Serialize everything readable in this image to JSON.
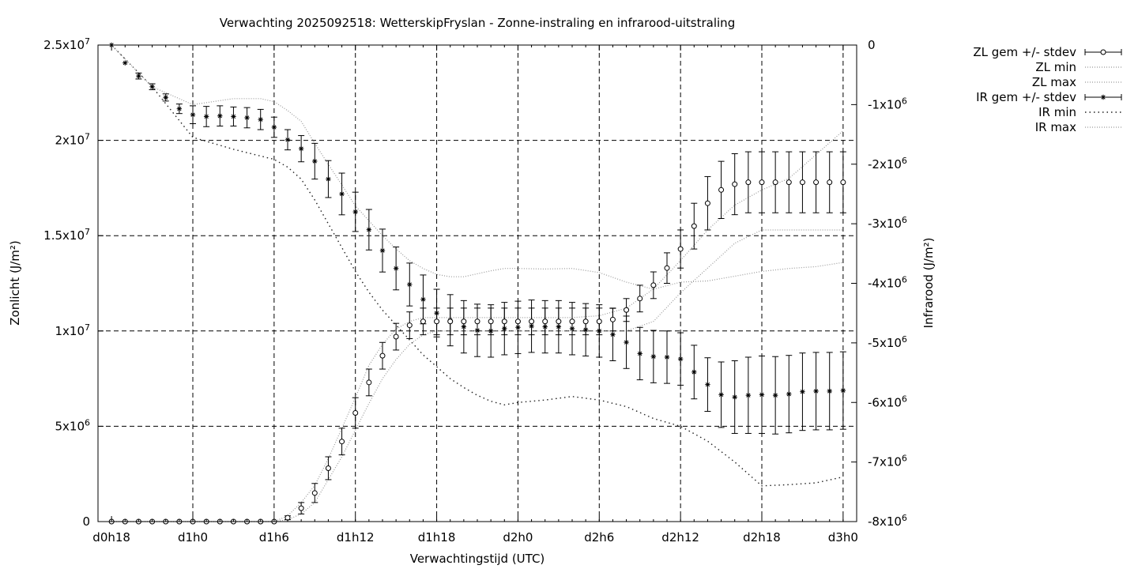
{
  "chart_data": {
    "type": "line",
    "title": "Verwachting 2025092518: WetterskipFryslan - Zonne-instraling en infrarood-uitstraling",
    "xlabel": "Verwachtingstijd (UTC)",
    "ylabel": "Zonlicht (J/m²)",
    "y2label": "Infrarood (J/m²)",
    "x_tick_labels": [
      "d0h18",
      "d1h0",
      "d1h6",
      "d1h12",
      "d1h18",
      "d2h0",
      "d2h6",
      "d2h12",
      "d2h18",
      "d3h0"
    ],
    "x_ticks_hours": [
      18,
      24,
      30,
      36,
      42,
      48,
      54,
      60,
      66,
      72
    ],
    "xlim": [
      17,
      73
    ],
    "ylim": [
      0,
      25000000
    ],
    "y_ticks": [
      {
        "value": 0,
        "base": "0",
        "exp": ""
      },
      {
        "value": 5000000,
        "base": "5x10",
        "exp": "6"
      },
      {
        "value": 10000000,
        "base": "1x10",
        "exp": "7"
      },
      {
        "value": 15000000,
        "base": "1.5x10",
        "exp": "7"
      },
      {
        "value": 20000000,
        "base": "2x10",
        "exp": "7"
      },
      {
        "value": 25000000,
        "base": "2.5x10",
        "exp": "7"
      }
    ],
    "y2lim": [
      -8000000,
      0
    ],
    "y2_ticks": [
      {
        "value": 0,
        "base": "0",
        "exp": ""
      },
      {
        "value": -1000000,
        "base": "-1x10",
        "exp": "6"
      },
      {
        "value": -2000000,
        "base": "-2x10",
        "exp": "6"
      },
      {
        "value": -3000000,
        "base": "-3x10",
        "exp": "6"
      },
      {
        "value": -4000000,
        "base": "-4x10",
        "exp": "6"
      },
      {
        "value": -5000000,
        "base": "-5x10",
        "exp": "6"
      },
      {
        "value": -6000000,
        "base": "-6x10",
        "exp": "6"
      },
      {
        "value": -7000000,
        "base": "-7x10",
        "exp": "6"
      },
      {
        "value": -8000000,
        "base": "-8x10",
        "exp": "6"
      }
    ],
    "grid": true,
    "legend_position": "outside-right",
    "series": [
      {
        "name": "ZL gem +/- stdev",
        "axis": "y1",
        "marker": "circle",
        "style": "errorbars",
        "x": [
          18,
          19,
          20,
          21,
          22,
          23,
          24,
          25,
          26,
          27,
          28,
          29,
          30,
          31,
          32,
          33,
          34,
          35,
          36,
          37,
          38,
          39,
          40,
          41,
          42,
          43,
          44,
          45,
          46,
          47,
          48,
          49,
          50,
          51,
          52,
          53,
          54,
          55,
          56,
          57,
          58,
          59,
          60,
          61,
          62,
          63,
          64,
          65,
          66,
          67,
          68,
          69,
          70,
          71,
          72
        ],
        "values": [
          0,
          0,
          0,
          0,
          0,
          0,
          0,
          0,
          0,
          0,
          0,
          0,
          0,
          200000,
          700000,
          1500000,
          2800000,
          4200000,
          5700000,
          7300000,
          8700000,
          9700000,
          10300000,
          10500000,
          10500000,
          10500000,
          10500000,
          10500000,
          10500000,
          10500000,
          10500000,
          10500000,
          10500000,
          10500000,
          10500000,
          10500000,
          10500000,
          10600000,
          11100000,
          11700000,
          12400000,
          13300000,
          14300000,
          15500000,
          16700000,
          17400000,
          17700000,
          17800000,
          17800000,
          17800000,
          17800000,
          17800000,
          17800000,
          17800000,
          17800000
        ],
        "stdev": [
          0,
          0,
          0,
          0,
          0,
          0,
          0,
          0,
          0,
          0,
          0,
          0,
          0,
          100000,
          300000,
          500000,
          600000,
          700000,
          800000,
          700000,
          700000,
          700000,
          700000,
          700000,
          700000,
          700000,
          700000,
          700000,
          700000,
          700000,
          700000,
          700000,
          700000,
          700000,
          700000,
          700000,
          700000,
          600000,
          600000,
          700000,
          700000,
          800000,
          1000000,
          1200000,
          1400000,
          1500000,
          1600000,
          1600000,
          1600000,
          1600000,
          1600000,
          1600000,
          1600000,
          1600000,
          1600000
        ]
      },
      {
        "name": "ZL min",
        "axis": "y1",
        "style": "dotted",
        "x": [
          18,
          24,
          30,
          31,
          32,
          33,
          34,
          35,
          36,
          37,
          38,
          39,
          40,
          41,
          42,
          43,
          44,
          45,
          46,
          47,
          48,
          50,
          52,
          54,
          56,
          58,
          60,
          62,
          64,
          66,
          68,
          72
        ],
        "values": [
          0,
          0,
          0,
          100000,
          400000,
          1000000,
          2200000,
          3400000,
          4800000,
          6200000,
          7500000,
          8500000,
          9300000,
          9800000,
          10000000,
          10000000,
          10000000,
          10000000,
          10000000,
          10000000,
          10000000,
          10000000,
          10000000,
          10000000,
          10000000,
          10500000,
          12000000,
          13300000,
          14600000,
          15300000,
          15300000,
          15300000
        ]
      },
      {
        "name": "ZL max",
        "axis": "y1",
        "style": "dotted",
        "x": [
          18,
          24,
          30,
          31,
          32,
          33,
          34,
          35,
          36,
          37,
          38,
          39,
          40,
          41,
          42,
          43,
          44,
          45,
          46,
          47,
          48,
          50,
          52,
          54,
          56,
          58,
          60,
          62,
          64,
          66,
          68,
          72
        ],
        "values": [
          0,
          0,
          0,
          300000,
          1000000,
          1900000,
          3300000,
          4900000,
          6500000,
          8200000,
          9300000,
          10100000,
          10500000,
          10700000,
          10700000,
          10700000,
          10700000,
          10700000,
          10700000,
          10700000,
          10700000,
          10700000,
          10700000,
          10800000,
          11200000,
          12200000,
          13700000,
          15300000,
          16600000,
          17400000,
          18000000,
          20500000
        ]
      },
      {
        "name": "IR gem +/- stdev",
        "axis": "y2",
        "marker": "star",
        "style": "errorbars",
        "x": [
          18,
          19,
          20,
          21,
          22,
          23,
          24,
          25,
          26,
          27,
          28,
          29,
          30,
          31,
          32,
          33,
          34,
          35,
          36,
          37,
          38,
          39,
          40,
          41,
          42,
          43,
          44,
          45,
          46,
          47,
          48,
          49,
          50,
          51,
          52,
          53,
          54,
          55,
          56,
          57,
          58,
          59,
          60,
          61,
          62,
          63,
          64,
          65,
          66,
          67,
          68,
          69,
          70,
          71,
          72
        ],
        "values": [
          0,
          -300000,
          -520000,
          -700000,
          -880000,
          -1070000,
          -1170000,
          -1200000,
          -1190000,
          -1200000,
          -1220000,
          -1250000,
          -1380000,
          -1590000,
          -1740000,
          -1950000,
          -2250000,
          -2500000,
          -2800000,
          -3100000,
          -3450000,
          -3750000,
          -4020000,
          -4270000,
          -4500000,
          -4620000,
          -4730000,
          -4790000,
          -4800000,
          -4760000,
          -4740000,
          -4720000,
          -4730000,
          -4730000,
          -4760000,
          -4780000,
          -4800000,
          -4860000,
          -4990000,
          -5180000,
          -5230000,
          -5240000,
          -5270000,
          -5490000,
          -5700000,
          -5870000,
          -5910000,
          -5880000,
          -5870000,
          -5880000,
          -5860000,
          -5820000,
          -5810000,
          -5810000,
          -5800000
        ],
        "stdev": [
          0,
          0,
          50000,
          50000,
          60000,
          80000,
          150000,
          170000,
          170000,
          160000,
          170000,
          170000,
          170000,
          170000,
          220000,
          300000,
          310000,
          350000,
          330000,
          340000,
          360000,
          360000,
          360000,
          410000,
          400000,
          430000,
          440000,
          440000,
          440000,
          440000,
          440000,
          440000,
          440000,
          440000,
          440000,
          440000,
          440000,
          440000,
          440000,
          440000,
          440000,
          440000,
          440000,
          450000,
          450000,
          550000,
          610000,
          640000,
          650000,
          650000,
          650000,
          650000,
          650000,
          650000,
          650000
        ]
      },
      {
        "name": "IR min",
        "axis": "y2",
        "style": "dotted",
        "x": [
          18,
          21,
          24,
          27,
          30,
          31,
          32,
          33,
          34,
          35,
          36,
          37,
          38,
          39,
          40,
          41,
          42,
          43,
          44,
          45,
          46,
          47,
          48,
          50,
          52,
          54,
          56,
          58,
          60,
          62,
          64,
          66,
          68,
          70,
          72
        ],
        "values": [
          0,
          -700000,
          -1550000,
          -1750000,
          -1920000,
          -2050000,
          -2250000,
          -2600000,
          -3000000,
          -3400000,
          -3800000,
          -4150000,
          -4450000,
          -4700000,
          -4950000,
          -5200000,
          -5400000,
          -5600000,
          -5750000,
          -5880000,
          -5980000,
          -6040000,
          -6000000,
          -5960000,
          -5900000,
          -5960000,
          -6070000,
          -6270000,
          -6400000,
          -6650000,
          -7000000,
          -7400000,
          -7380000,
          -7350000,
          -7250000
        ]
      },
      {
        "name": "IR max",
        "axis": "y2",
        "style": "dotted",
        "x": [
          18,
          21,
          24,
          27,
          29,
          30,
          31,
          32,
          33,
          34,
          35,
          36,
          37,
          38,
          39,
          40,
          41,
          42,
          43,
          44,
          45,
          46,
          47,
          48,
          50,
          52,
          54,
          56,
          58,
          60,
          62,
          64,
          66,
          68,
          70,
          72
        ],
        "values": [
          0,
          -700000,
          -1000000,
          -900000,
          -900000,
          -950000,
          -1100000,
          -1280000,
          -1650000,
          -2000000,
          -2350000,
          -2700000,
          -2950000,
          -3200000,
          -3420000,
          -3620000,
          -3750000,
          -3850000,
          -3890000,
          -3890000,
          -3840000,
          -3790000,
          -3750000,
          -3750000,
          -3760000,
          -3750000,
          -3820000,
          -3980000,
          -4100000,
          -3980000,
          -3960000,
          -3880000,
          -3800000,
          -3750000,
          -3720000,
          -3650000
        ]
      }
    ]
  }
}
